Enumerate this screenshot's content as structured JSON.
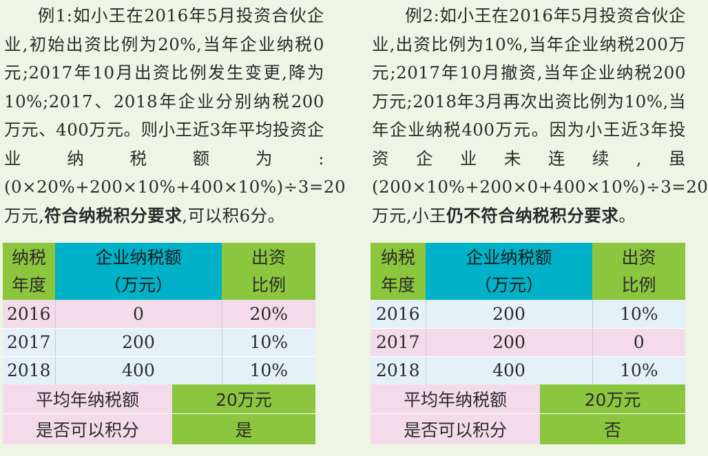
{
  "example1": {
    "text_lines": [
      "例1:如小王在2016年5月投资合伙企业,初始出资比例为20%,当年企业纳税0元;2017年10月出资比例发生变更,降为10%;2017、2018年企业分别纳税200万元、400万元。则小王近3年平均投资企业纳税额为:(0×20%+200×10%+400×10%)÷3=20万元,",
      "符合纳税积分要求",
      ",可以积6分。"
    ],
    "table": {
      "headers": [
        "纳税年度",
        "企业纳税额（万元）",
        "出资比例"
      ],
      "rows": [
        [
          "2016",
          "0",
          "20%"
        ],
        [
          "2017",
          "200",
          "10%"
        ],
        [
          "2018",
          "400",
          "10%"
        ]
      ],
      "avg_label": "平均年纳税额",
      "avg_value": "20万元",
      "score_label": "是否可以积分",
      "score_value": "是"
    }
  },
  "example2": {
    "text_lines": [
      "例2:如小王在2016年5月投资合伙企业,出资比例为10%,当年企业纳税200万元;2017年10月撤资,当年企业纳税200万元;2018年3月再次出资比例为10%,当年企业纳税400万元。因为小王近3年投资企业未连续,虽(200×10%+200×0+400×10%)÷3=20万元,小王",
      "仍不符合纳税积分要求",
      "。"
    ],
    "table": {
      "headers": [
        "纳税年度",
        "企业纳税额（万元）",
        "出资比例"
      ],
      "rows": [
        [
          "2016",
          "200",
          "10%"
        ],
        [
          "2017",
          "200",
          "0"
        ],
        [
          "2018",
          "400",
          "10%"
        ]
      ],
      "avg_label": "平均年纳税额",
      "avg_value": "20万元",
      "score_label": "是否可以积分",
      "score_value": "否"
    }
  },
  "colors": {
    "background": "#eef5e4",
    "header_green": "#8cc63f",
    "header_teal": "#00b1c7",
    "row_pink": "#f3dbe9",
    "row_blue": "#e4f1f8"
  }
}
